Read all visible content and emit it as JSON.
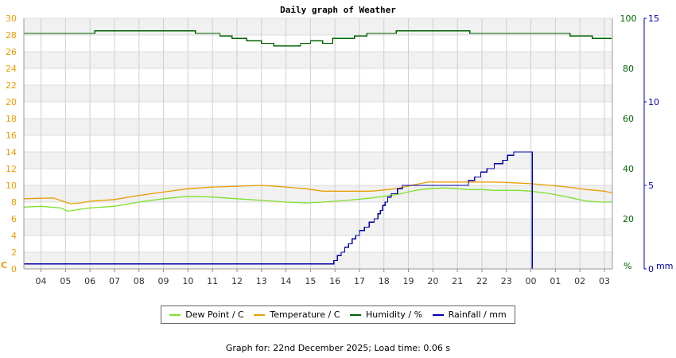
{
  "chart_data": {
    "type": "line",
    "title": "Daily graph of Weather",
    "x_ticks": [
      "04",
      "05",
      "06",
      "07",
      "08",
      "09",
      "10",
      "11",
      "12",
      "13",
      "14",
      "15",
      "16",
      "17",
      "18",
      "19",
      "20",
      "21",
      "22",
      "23",
      "00",
      "01",
      "02",
      "03"
    ],
    "axes": {
      "left": {
        "unit_label": "C",
        "ylim": [
          0,
          30
        ],
        "ticks": [
          0,
          2,
          4,
          6,
          8,
          10,
          12,
          14,
          16,
          18,
          20,
          22,
          24,
          26,
          28,
          30
        ],
        "color": "#e89e00"
      },
      "right1": {
        "unit_label": "%",
        "ylim": [
          0,
          100
        ],
        "ticks": [
          0,
          20,
          40,
          60,
          80,
          100
        ],
        "color": "#006400"
      },
      "right2": {
        "unit_label": "mm",
        "ylim": [
          0,
          15
        ],
        "ticks": [
          0,
          5,
          10,
          15
        ],
        "color": "#0000aa"
      }
    },
    "grid": true,
    "legend_position": "bottom",
    "series": [
      {
        "name": "Dew Point / C",
        "axis": "left",
        "color": "#7ee02c",
        "x": [
          3.3,
          4.0,
          4.8,
          5.1,
          5.5,
          6.0,
          7.0,
          8.0,
          9.0,
          10.0,
          11.0,
          12.0,
          13.0,
          14.0,
          14.8,
          15.5,
          16.5,
          17.5,
          18.5,
          19.3,
          19.8,
          20.5,
          21.0,
          21.5,
          22.0,
          22.5,
          23.5,
          24.0,
          24.8,
          25.5,
          26.3,
          27.0,
          27.3
        ],
        "y": [
          7.4,
          7.5,
          7.3,
          6.9,
          7.1,
          7.3,
          7.5,
          8.0,
          8.4,
          8.7,
          8.6,
          8.4,
          8.2,
          8.0,
          7.9,
          8.0,
          8.2,
          8.5,
          8.9,
          9.4,
          9.6,
          9.7,
          9.6,
          9.5,
          9.5,
          9.4,
          9.4,
          9.3,
          9.0,
          8.6,
          8.1,
          8.0,
          8.0
        ]
      },
      {
        "name": "Temperature / C",
        "axis": "left",
        "color": "#e89e00",
        "x": [
          3.3,
          4.5,
          4.9,
          5.2,
          5.6,
          6.0,
          6.5,
          7.0,
          8.0,
          9.0,
          10.0,
          11.0,
          12.0,
          13.0,
          14.0,
          14.8,
          15.5,
          16.5,
          17.5,
          18.5,
          19.3,
          19.8,
          20.5,
          21.5,
          22.5,
          23.3,
          24.0,
          24.8,
          25.5,
          26.3,
          27.0,
          27.3
        ],
        "y": [
          8.4,
          8.5,
          8.1,
          7.8,
          7.9,
          8.1,
          8.2,
          8.3,
          8.8,
          9.2,
          9.6,
          9.8,
          9.9,
          10.0,
          9.8,
          9.6,
          9.3,
          9.3,
          9.3,
          9.6,
          10.1,
          10.4,
          10.4,
          10.4,
          10.4,
          10.3,
          10.2,
          10.0,
          9.8,
          9.5,
          9.3,
          9.1
        ]
      },
      {
        "name": "Humidity / %",
        "axis": "right1",
        "color": "#006400",
        "step": true,
        "x": [
          3.3,
          4.5,
          5.0,
          5.5,
          6.0,
          6.2,
          7.0,
          8.0,
          9.0,
          10.0,
          10.3,
          10.7,
          11.3,
          11.8,
          12.4,
          13.0,
          13.5,
          14.0,
          14.6,
          15.0,
          15.5,
          15.9,
          16.3,
          16.8,
          17.3,
          18.0,
          18.5,
          19.0,
          20.0,
          21.0,
          21.5,
          22.0,
          23.0,
          24.0,
          24.5,
          25.0,
          25.3,
          25.6,
          26.0,
          26.5,
          27.0,
          27.3
        ],
        "y": [
          94,
          94,
          94,
          94,
          94,
          95,
          95,
          95,
          95,
          95,
          94,
          94,
          93,
          92,
          91,
          90,
          89,
          89,
          90,
          91,
          90,
          92,
          92,
          93,
          94,
          94,
          95,
          95,
          95,
          95,
          94,
          94,
          94,
          94,
          94,
          94,
          94,
          93,
          93,
          92,
          92,
          92
        ]
      },
      {
        "name": "Rainfall / mm",
        "axis": "right2",
        "color": "#0000aa",
        "step": true,
        "x": [
          3.3,
          15.0,
          15.8,
          15.95,
          16.1,
          16.25,
          16.4,
          16.55,
          16.7,
          16.85,
          17.0,
          17.2,
          17.4,
          17.6,
          17.75,
          17.85,
          17.95,
          18.05,
          18.15,
          18.3,
          18.55,
          18.75,
          19.0,
          19.5,
          20.0,
          20.5,
          20.9,
          21.2,
          21.45,
          21.7,
          21.95,
          22.2,
          22.5,
          22.85,
          23.05,
          23.3,
          23.5,
          24.0,
          24.05,
          27.3
        ],
        "y": [
          0.3,
          0.3,
          0.3,
          0.5,
          0.8,
          1.0,
          1.3,
          1.5,
          1.8,
          2.0,
          2.3,
          2.5,
          2.8,
          3.0,
          3.3,
          3.5,
          3.8,
          4.0,
          4.3,
          4.5,
          4.8,
          5.0,
          5.0,
          5.0,
          5.0,
          5.0,
          5.0,
          5.0,
          5.3,
          5.5,
          5.8,
          6.0,
          6.3,
          6.5,
          6.8,
          7.0,
          7.0,
          7.0,
          0.0,
          0.0
        ]
      }
    ]
  },
  "legend": [
    {
      "label": "Dew Point / C",
      "color": "#7ee02c"
    },
    {
      "label": "Temperature / C",
      "color": "#e89e00"
    },
    {
      "label": "Humidity / %",
      "color": "#006400"
    },
    {
      "label": "Rainfall / mm",
      "color": "#0000aa"
    }
  ],
  "footer": "Graph for: 22nd December 2025; Load time: 0.06 s"
}
